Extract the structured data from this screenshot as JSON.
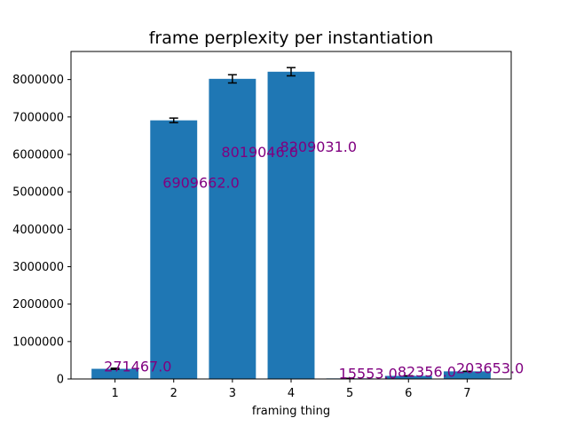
{
  "chart_data": {
    "type": "bar",
    "title": "frame perplexity per instantiation",
    "xlabel": "framing thing",
    "ylabel": "",
    "categories": [
      "1",
      "2",
      "3",
      "4",
      "5",
      "6",
      "7"
    ],
    "values": [
      271467.0,
      6909662.0,
      8019046.0,
      8209031.0,
      15553.0,
      82356.0,
      203653.0
    ],
    "errors": [
      15000,
      60000,
      110000,
      110000,
      0,
      0,
      0
    ],
    "data_labels": [
      "271467.0",
      "6909662.0",
      "8019046.0",
      "8209031.0",
      "15553.0",
      "82356.0",
      "203653.0"
    ],
    "ylim": [
      0,
      8750000
    ],
    "yticks": [
      0,
      1000000,
      2000000,
      3000000,
      4000000,
      5000000,
      6000000,
      7000000,
      8000000
    ],
    "ytick_labels": [
      "0",
      "1000000",
      "2000000",
      "3000000",
      "4000000",
      "5000000",
      "6000000",
      "7000000",
      "8000000"
    ],
    "grid": false,
    "colors": {
      "bar": "#1f77b4",
      "label": "#800080",
      "error": "#000000"
    }
  }
}
